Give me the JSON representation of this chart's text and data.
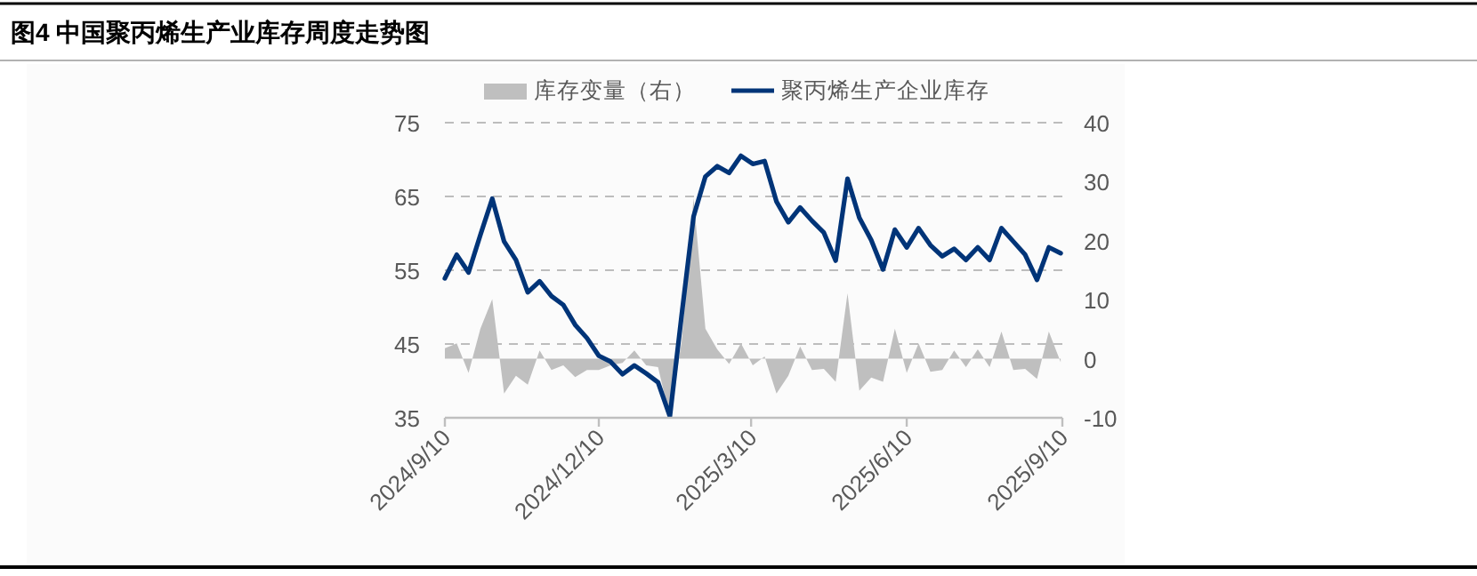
{
  "chart_data": {
    "type": "line",
    "title": "图4 中国聚丙烯生产业库存周度走势图",
    "legend": "top",
    "grid": "y",
    "line_style": "solid",
    "marker": "none",
    "x": [
      "2024-09-10",
      "2024-09-17",
      "2024-09-24",
      "2024-10-01",
      "2024-10-08",
      "2024-10-15",
      "2024-10-22",
      "2024-10-29",
      "2024-11-05",
      "2024-11-12",
      "2024-11-19",
      "2024-11-26",
      "2024-12-03",
      "2024-12-10",
      "2024-12-17",
      "2024-12-24",
      "2024-12-31",
      "2025-01-07",
      "2025-01-14",
      "2025-01-21",
      "2025-01-28",
      "2025-02-04",
      "2025-02-11",
      "2025-02-18",
      "2025-02-25",
      "2025-03-04",
      "2025-03-11",
      "2025-03-18",
      "2025-03-25",
      "2025-04-01",
      "2025-04-08",
      "2025-04-15",
      "2025-04-22",
      "2025-04-29",
      "2025-05-06",
      "2025-05-13",
      "2025-05-20",
      "2025-05-27",
      "2025-06-03",
      "2025-06-10",
      "2025-06-17",
      "2025-06-24",
      "2025-07-01",
      "2025-07-08",
      "2025-07-15",
      "2025-07-22",
      "2025-07-29",
      "2025-08-05",
      "2025-08-12",
      "2025-08-19",
      "2025-08-26",
      "2025-09-02",
      "2025-09-09"
    ],
    "series": [
      {
        "name": "库存变量（右）",
        "type": "area",
        "axis": "y2",
        "color": "#bfbfbf",
        "values": [
          1.8,
          2.6,
          -2.4,
          5.1,
          10.1,
          -5.9,
          -2.9,
          -4.4,
          1.4,
          -1.9,
          -1.1,
          -3.1,
          -1.9,
          -1.9,
          -1.1,
          -0.7,
          1.4,
          -1.1,
          -1.4,
          -10,
          3,
          27.2,
          5.1,
          1.6,
          -0.9,
          2.6,
          -1.1,
          0.4,
          -5.9,
          -2.9,
          2.1,
          -1.9,
          -1.7,
          -3.9,
          11.1,
          -5.4,
          -3.2,
          -3.9,
          5.1,
          -2.4,
          2.6,
          -2.2,
          -1.9,
          1.4,
          -1.4,
          1.6,
          -1.4,
          4.6,
          -1.9,
          -1.7,
          -3.4,
          4.6,
          -0.6
        ]
      },
      {
        "name": "聚丙烯生产企业库存",
        "color": "#003478",
        "values": [
          53.9,
          57.1,
          54.7,
          59.8,
          64.7,
          58.9,
          56.4,
          52.0,
          53.5,
          51.5,
          50.3,
          47.6,
          45.8,
          43.4,
          42.6,
          40.9,
          42.1,
          41.0,
          39.8,
          35.2,
          49.0,
          62.3,
          67.7,
          69.1,
          68.2,
          70.5,
          69.4,
          69.8,
          64.3,
          61.5,
          63.5,
          61.7,
          60.1,
          56.3,
          67.4,
          62.1,
          59.1,
          55.1,
          60.5,
          58.1,
          60.7,
          58.4,
          56.9,
          57.9,
          56.4,
          58.1,
          56.4,
          60.7,
          58.9,
          57.1,
          53.7,
          58.1,
          57.3
        ]
      }
    ],
    "xlim": [
      "2024-09-10",
      "2025-09-10"
    ],
    "xticks": [
      {
        "value": "2024-09-10",
        "label": "2024/9/10"
      },
      {
        "value": "2024-12-10",
        "label": "2024/12/10"
      },
      {
        "value": "2025-03-10",
        "label": "2025/3/10"
      },
      {
        "value": "2025-06-10",
        "label": "2025/6/10"
      },
      {
        "value": "2025-09-10",
        "label": "2025/9/10"
      }
    ],
    "ylim": [
      35,
      75
    ],
    "yticks": [
      35,
      45,
      55,
      65,
      75
    ],
    "y2lim": [
      -10,
      40
    ],
    "y2ticks": [
      -10,
      0,
      10,
      20,
      30,
      40
    ]
  }
}
